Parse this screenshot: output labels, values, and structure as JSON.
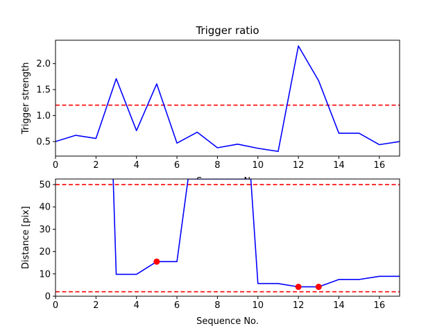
{
  "chart_data": [
    {
      "type": "line",
      "title": "Trigger ratio",
      "xlabel": "Sequence No.",
      "ylabel": "Trigger strength",
      "xlim": [
        0,
        17
      ],
      "ylim": [
        0.22,
        2.45
      ],
      "xticks": [
        0,
        2,
        4,
        6,
        8,
        10,
        12,
        14,
        16
      ],
      "yticks": [
        0.5,
        1.0,
        1.5,
        2.0
      ],
      "ytick_labels": [
        "0.5",
        "1.0",
        "1.5",
        "2.0"
      ],
      "grid": false,
      "series": [
        {
          "color": "#0000ff",
          "x": [
            0,
            1,
            2,
            3,
            4,
            5,
            6,
            7,
            8,
            9,
            10,
            11,
            12,
            13,
            14,
            15,
            16,
            17
          ],
          "y": [
            0.5,
            0.62,
            0.56,
            1.71,
            0.71,
            1.61,
            0.47,
            0.68,
            0.38,
            0.45,
            0.37,
            0.31,
            2.34,
            1.67,
            0.66,
            0.66,
            0.44,
            0.5
          ]
        }
      ],
      "hlines": [
        {
          "y": 1.2,
          "color": "#ff0000",
          "style": "dashed"
        }
      ]
    },
    {
      "type": "line",
      "title": "",
      "xlabel": "Sequence No.",
      "ylabel": "Distance [pix]",
      "xlim": [
        0,
        17
      ],
      "ylim": [
        0,
        52.5
      ],
      "xticks": [
        0,
        2,
        4,
        6,
        8,
        10,
        12,
        14,
        16
      ],
      "yticks": [
        0,
        10,
        20,
        30,
        40,
        50
      ],
      "ytick_labels": [
        "0",
        "10",
        "20",
        "30",
        "40",
        "50"
      ],
      "grid": false,
      "series": [
        {
          "color": "#0000ff",
          "x": [
            2.85,
            3,
            4,
            5,
            6,
            6.55,
            9.65,
            10,
            11,
            12,
            13,
            14,
            15,
            16,
            17
          ],
          "y": [
            52.5,
            9.8,
            9.8,
            15.5,
            15.5,
            52.5,
            52.5,
            5.7,
            5.7,
            4.2,
            4.2,
            7.5,
            7.5,
            8.9,
            8.9
          ]
        }
      ],
      "markers": {
        "color": "#ff0000",
        "x": [
          5,
          12,
          13
        ],
        "y": [
          15.5,
          4.2,
          4.2
        ]
      },
      "hlines": [
        {
          "y": 50,
          "color": "#ff0000",
          "style": "dashed"
        },
        {
          "y": 2,
          "color": "#ff0000",
          "style": "dashed"
        }
      ]
    }
  ]
}
